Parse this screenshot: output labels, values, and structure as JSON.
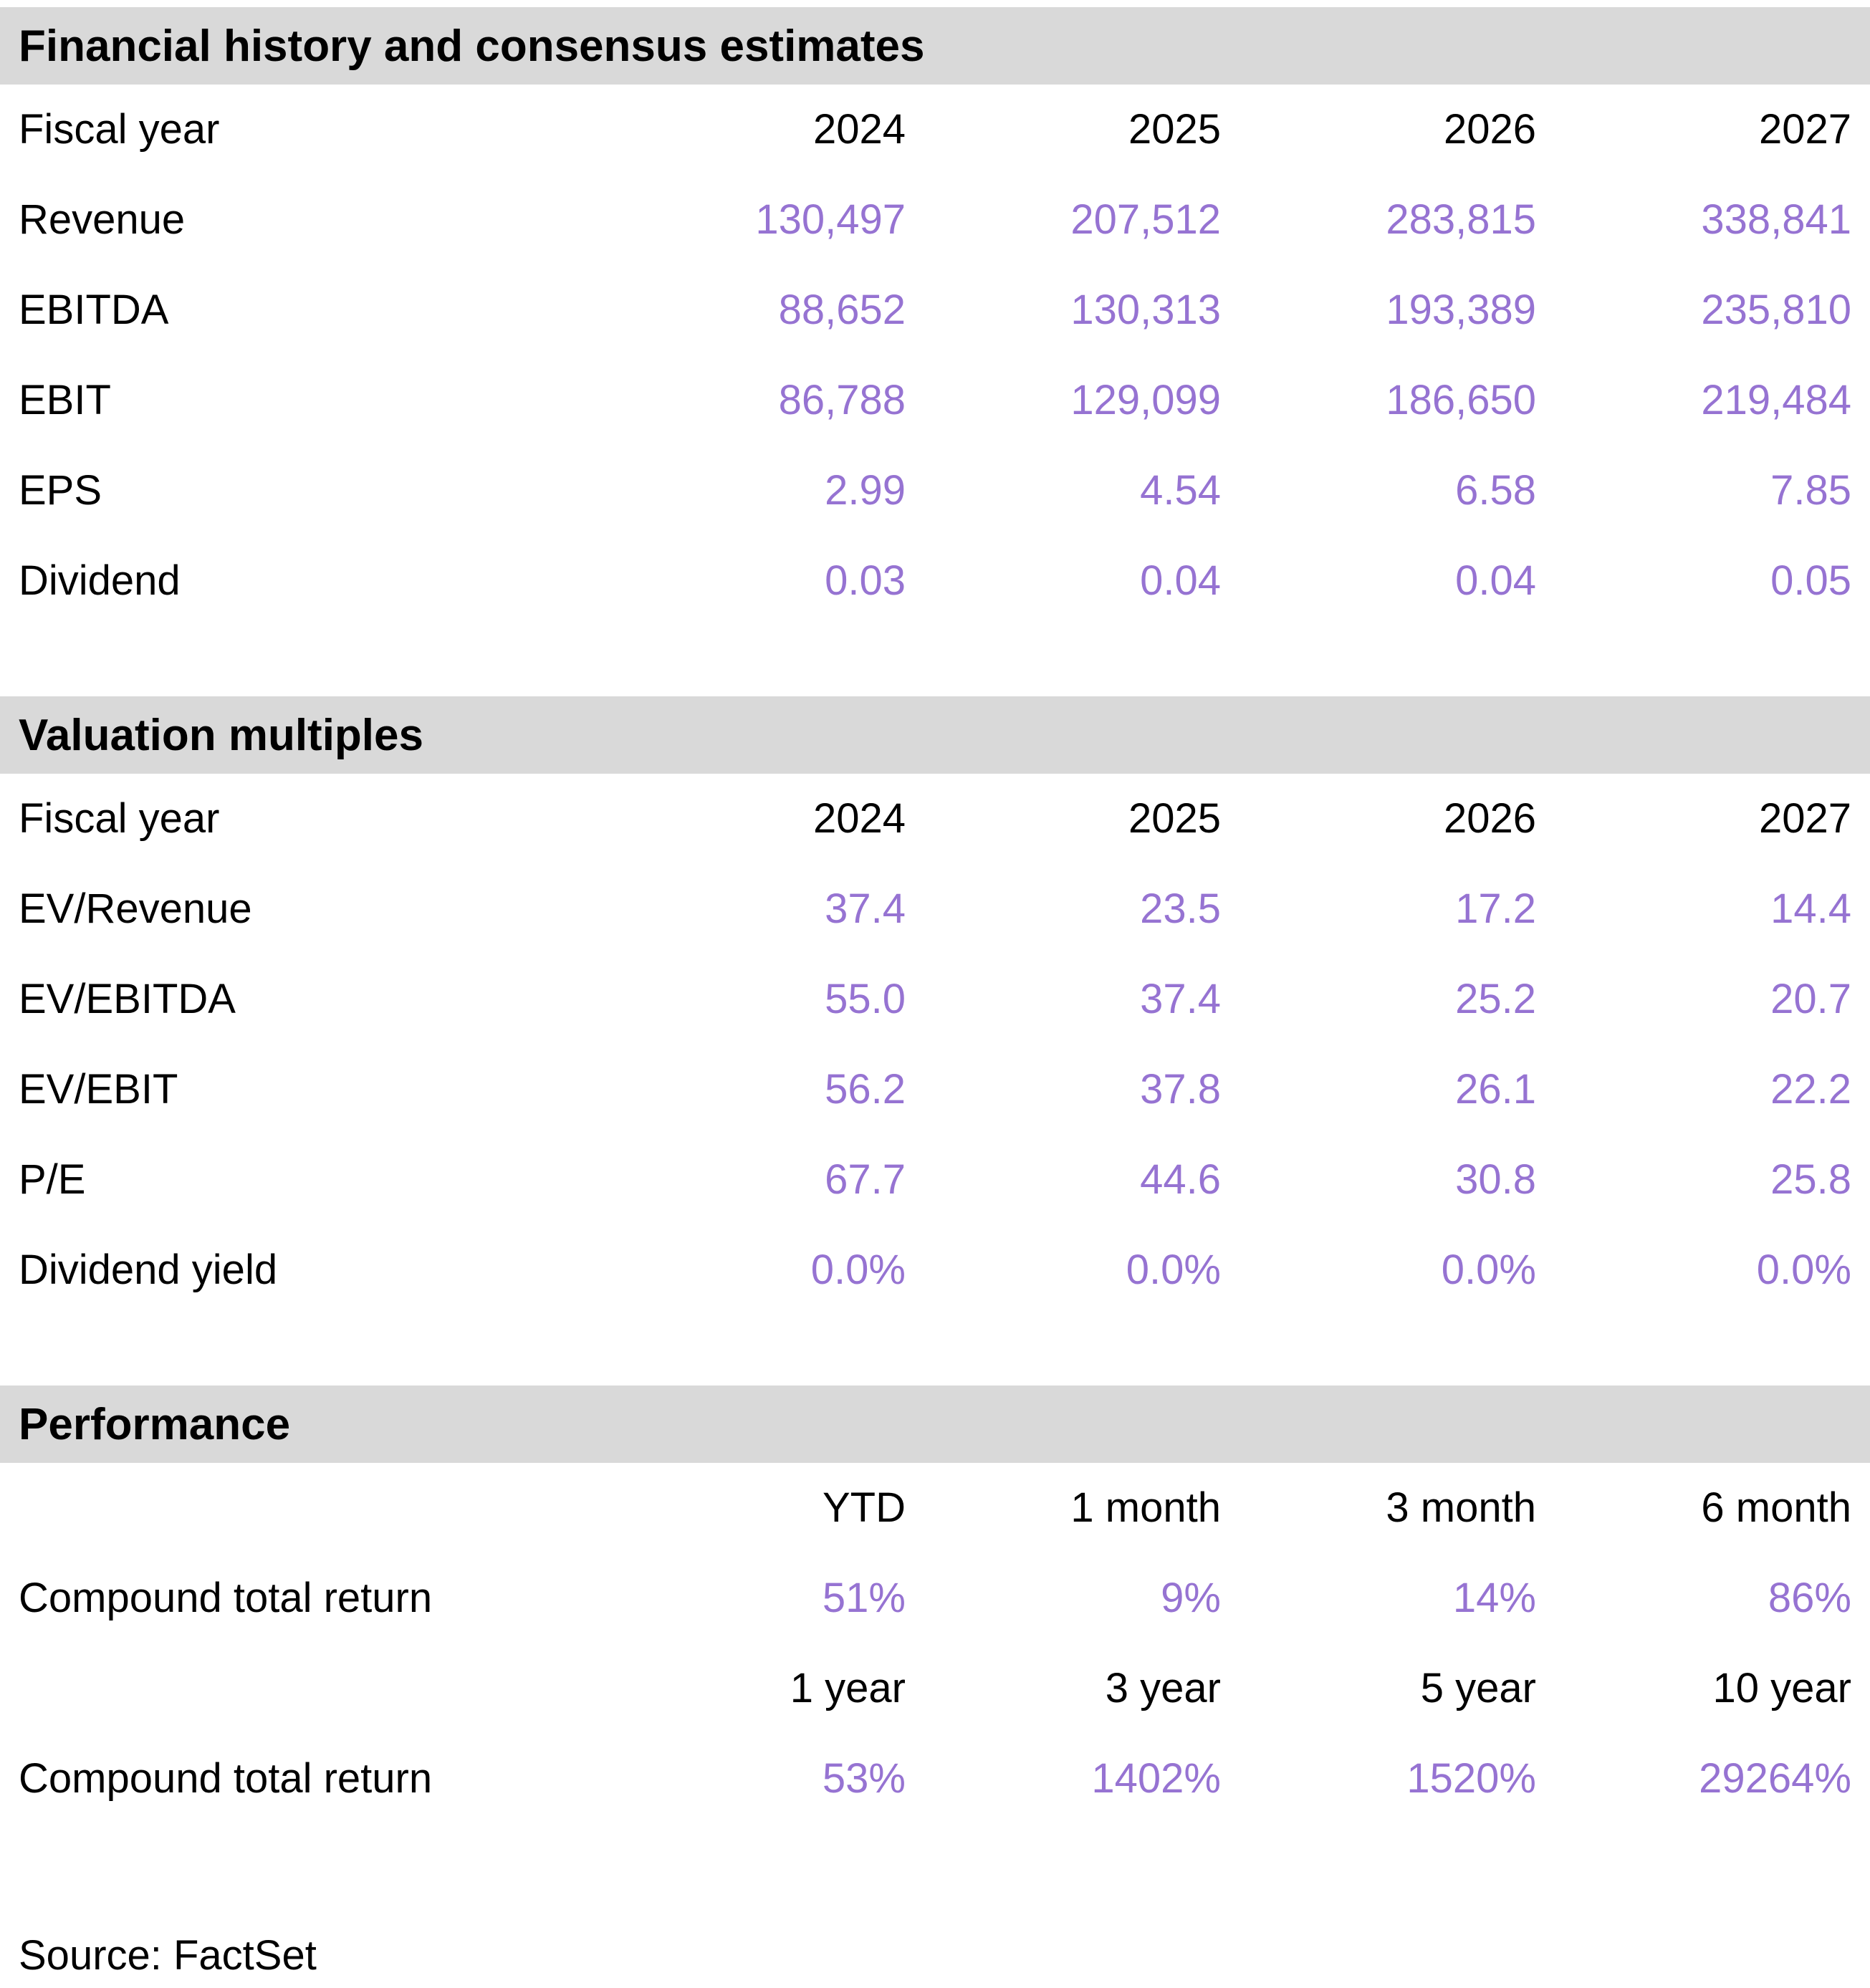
{
  "colors": {
    "section_header_bg": "#d9d9d9",
    "value_text": "#9673d2",
    "label_text": "#000000"
  },
  "sections": [
    {
      "id": "financial-history",
      "title": "Financial history and consensus estimates",
      "rows": [
        {
          "label": "Fiscal year",
          "values": [
            "2024",
            "2025",
            "2026",
            "2027"
          ],
          "style": "header"
        },
        {
          "label": "Revenue",
          "values": [
            "130,497",
            "207,512",
            "283,815",
            "338,841"
          ],
          "style": "value"
        },
        {
          "label": "EBITDA",
          "values": [
            "88,652",
            "130,313",
            "193,389",
            "235,810"
          ],
          "style": "value"
        },
        {
          "label": "EBIT",
          "values": [
            "86,788",
            "129,099",
            "186,650",
            "219,484"
          ],
          "style": "value"
        },
        {
          "label": "EPS",
          "values": [
            "2.99",
            "4.54",
            "6.58",
            "7.85"
          ],
          "style": "value"
        },
        {
          "label": "Dividend",
          "values": [
            "0.03",
            "0.04",
            "0.04",
            "0.05"
          ],
          "style": "value"
        }
      ]
    },
    {
      "id": "valuation-multiples",
      "title": "Valuation multiples",
      "rows": [
        {
          "label": "Fiscal year",
          "values": [
            "2024",
            "2025",
            "2026",
            "2027"
          ],
          "style": "header"
        },
        {
          "label": "EV/Revenue",
          "values": [
            "37.4",
            "23.5",
            "17.2",
            "14.4"
          ],
          "style": "value"
        },
        {
          "label": "EV/EBITDA",
          "values": [
            "55.0",
            "37.4",
            "25.2",
            "20.7"
          ],
          "style": "value"
        },
        {
          "label": "EV/EBIT",
          "values": [
            "56.2",
            "37.8",
            "26.1",
            "22.2"
          ],
          "style": "value"
        },
        {
          "label": "P/E",
          "values": [
            "67.7",
            "44.6",
            "30.8",
            "25.8"
          ],
          "style": "value"
        },
        {
          "label": "Dividend yield",
          "values": [
            "0.0%",
            "0.0%",
            "0.0%",
            "0.0%"
          ],
          "style": "value"
        }
      ]
    },
    {
      "id": "performance",
      "title": "Performance",
      "rows": [
        {
          "label": "",
          "values": [
            "YTD",
            "1 month",
            "3 month",
            "6 month"
          ],
          "style": "header"
        },
        {
          "label": "Compound total return",
          "values": [
            "51%",
            "9%",
            "14%",
            "86%"
          ],
          "style": "value"
        },
        {
          "label": "",
          "values": [
            "1 year",
            "3 year",
            "5 year",
            "10 year"
          ],
          "style": "header"
        },
        {
          "label": "Compound total return",
          "values": [
            "53%",
            "1402%",
            "1520%",
            "29264%"
          ],
          "style": "value"
        }
      ]
    }
  ],
  "source": "Source: FactSet",
  "chart_data": [
    {
      "type": "table",
      "title": "Financial history and consensus estimates",
      "columns": [
        "Fiscal year",
        "2024",
        "2025",
        "2026",
        "2027"
      ],
      "rows": [
        [
          "Revenue",
          130497,
          207512,
          283815,
          338841
        ],
        [
          "EBITDA",
          88652,
          130313,
          193389,
          235810
        ],
        [
          "EBIT",
          86788,
          129099,
          186650,
          219484
        ],
        [
          "EPS",
          2.99,
          4.54,
          6.58,
          7.85
        ],
        [
          "Dividend",
          0.03,
          0.04,
          0.04,
          0.05
        ]
      ]
    },
    {
      "type": "table",
      "title": "Valuation multiples",
      "columns": [
        "Fiscal year",
        "2024",
        "2025",
        "2026",
        "2027"
      ],
      "rows": [
        [
          "EV/Revenue",
          37.4,
          23.5,
          17.2,
          14.4
        ],
        [
          "EV/EBITDA",
          55.0,
          37.4,
          25.2,
          20.7
        ],
        [
          "EV/EBIT",
          56.2,
          37.8,
          26.1,
          22.2
        ],
        [
          "P/E",
          67.7,
          44.6,
          30.8,
          25.8
        ],
        [
          "Dividend yield",
          "0.0%",
          "0.0%",
          "0.0%",
          "0.0%"
        ]
      ]
    },
    {
      "type": "table",
      "title": "Performance",
      "columns": [
        "",
        "YTD",
        "1 month",
        "3 month",
        "6 month"
      ],
      "rows": [
        [
          "Compound total return",
          "51%",
          "9%",
          "14%",
          "86%"
        ]
      ],
      "columns_2": [
        "",
        "1 year",
        "3 year",
        "5 year",
        "10 year"
      ],
      "rows_2": [
        [
          "Compound total return",
          "53%",
          "1402%",
          "1520%",
          "29264%"
        ]
      ]
    }
  ]
}
